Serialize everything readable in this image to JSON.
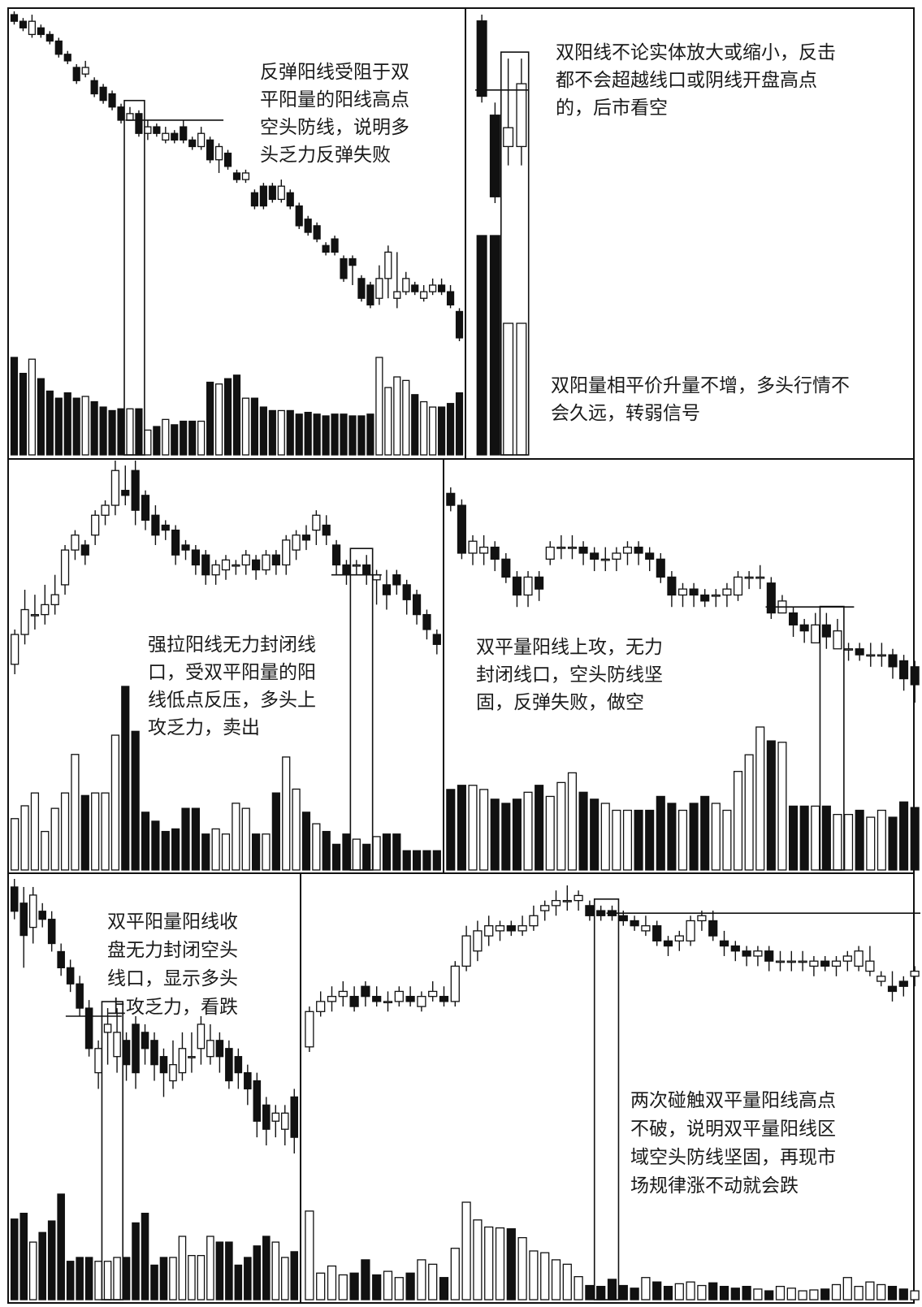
{
  "colors": {
    "bearish": "#111111",
    "bullish": "#ffffff",
    "outline": "#111111",
    "background": "#ffffff"
  },
  "chart_data": [
    {
      "type": "candlestick",
      "panel": "top-left",
      "annotation_lines": [
        "反弹阳线受阻于双",
        "平阳量的阳线高点",
        "空头防线，说明多",
        "头乏力反弹失败"
      ],
      "open": [
        98,
        97,
        95,
        96,
        95,
        94,
        92,
        90,
        89,
        88,
        87,
        86,
        84,
        82,
        83,
        80,
        81,
        79,
        80,
        81,
        79,
        78,
        79,
        76,
        77,
        74,
        73,
        71,
        72,
        72,
        70,
        71,
        69,
        67,
        66,
        63,
        64,
        61,
        61,
        58,
        57,
        55,
        58,
        55,
        56,
        57,
        55,
        56,
        57,
        56,
        53
      ],
      "close": [
        97,
        96,
        97,
        95,
        94,
        92,
        91,
        88,
        90,
        86,
        85,
        84,
        82,
        83,
        80,
        81,
        80,
        80,
        79,
        79,
        78,
        80,
        76,
        78,
        75,
        73,
        74,
        69,
        69,
        70,
        72,
        69,
        66,
        65,
        64,
        62,
        62,
        58,
        60,
        55,
        54,
        58,
        62,
        56,
        58,
        56,
        56,
        57,
        56,
        54,
        49
      ],
      "high": [
        98.5,
        97.5,
        98,
        96.5,
        95.5,
        94.5,
        92.5,
        90.5,
        91,
        88.5,
        87.5,
        86.5,
        84.5,
        84,
        83.5,
        82,
        81.5,
        81,
        80.5,
        82,
        79.5,
        81,
        79.5,
        78.5,
        77.5,
        74.5,
        74.5,
        71.5,
        72.5,
        72.5,
        73,
        71.5,
        69.5,
        67.5,
        66.5,
        63.5,
        64.5,
        61.5,
        61.5,
        58.5,
        57.5,
        60,
        63,
        62,
        59,
        57.5,
        57,
        58,
        58,
        57,
        53.5
      ],
      "low": [
        96.5,
        95.5,
        94.5,
        94.5,
        93.5,
        91.5,
        90.5,
        87.5,
        88.5,
        85.5,
        84.5,
        83.5,
        81.5,
        82,
        79.5,
        79,
        79.5,
        78.5,
        78.5,
        78.5,
        77.5,
        77.5,
        75.5,
        74,
        74.5,
        72.5,
        72.5,
        68.5,
        68.5,
        69.5,
        69.5,
        68.5,
        65.5,
        64.5,
        63.5,
        61.5,
        61.5,
        57.5,
        57,
        54.5,
        53.5,
        54,
        55,
        53.5,
        55.5,
        55.5,
        54.5,
        55.5,
        55.5,
        53.5,
        48.5
      ],
      "volume": [
        55,
        46,
        54,
        43,
        36,
        32,
        35,
        32,
        33,
        30,
        27,
        25,
        26,
        26,
        26,
        14,
        16,
        20,
        17,
        19,
        19,
        19,
        41,
        40,
        43,
        45,
        32,
        32,
        27,
        25,
        25,
        25,
        23,
        24,
        23,
        22,
        23,
        23,
        22,
        22,
        23,
        55,
        38,
        44,
        42,
        34,
        30,
        27,
        27,
        29,
        35
      ],
      "highlight_box": [
        13,
        14
      ],
      "reference_line": {
        "value": 82,
        "from_index": 13,
        "to_index": 23
      }
    },
    {
      "type": "candlestick",
      "panel": "top-right",
      "annotation_top_lines": [
        "双阳线不论实体放大或缩小，反击",
        "都不会超越线口或阴线开盘高点",
        "的，后市看空"
      ],
      "annotation_bottom_lines": [
        "双阳量相平价升量不增，多头行情不",
        "会久远，转弱信号"
      ],
      "open": [
        92,
        77,
        72,
        72
      ],
      "close": [
        80,
        64,
        75,
        82
      ],
      "high": [
        93,
        79,
        86,
        86
      ],
      "low": [
        79,
        63,
        69,
        69
      ],
      "volume": [
        100,
        100,
        60,
        60
      ],
      "highlight_box": [
        2,
        3
      ],
      "reference_line": {
        "value": 81,
        "from_index": 0,
        "to_index": 3
      }
    },
    {
      "type": "candlestick",
      "panel": "middle-left",
      "annotation_lines": [
        "强拉阳线无力封闭线",
        "口，受双平阳量的阳",
        "线低点反压，多头上",
        "攻乏力，卖出"
      ],
      "open": [
        60,
        66,
        70,
        70,
        72,
        76,
        83,
        84,
        86,
        90,
        92,
        95,
        99,
        94,
        90,
        88,
        87,
        84,
        83,
        82,
        78,
        79,
        80,
        80,
        81,
        79,
        82,
        80,
        83,
        86,
        87,
        88,
        84,
        80,
        80,
        80,
        77,
        76,
        78,
        76,
        74,
        70,
        66
      ],
      "close": [
        66,
        71,
        70,
        72,
        74,
        83,
        86,
        82,
        90,
        92,
        99,
        94,
        91,
        89,
        86,
        87,
        82,
        83,
        80,
        78,
        80,
        81,
        80,
        82,
        79,
        82,
        80,
        85,
        86,
        85,
        90,
        86,
        80,
        78,
        80,
        78,
        78,
        74,
        76,
        73,
        70,
        67,
        64
      ],
      "high": [
        67,
        75,
        74,
        76,
        78,
        84,
        87,
        85,
        91,
        93,
        101,
        100,
        101,
        95,
        92,
        89,
        88,
        85,
        84,
        83,
        81,
        82,
        81,
        83,
        82,
        83,
        83,
        86,
        87,
        88,
        91,
        90,
        85,
        81,
        81,
        82,
        79,
        79,
        79,
        77,
        75,
        71,
        67
      ],
      "low": [
        58,
        64,
        67,
        68,
        70,
        74,
        81,
        80,
        84,
        88,
        90,
        92,
        88,
        87,
        84,
        85,
        80,
        81,
        78,
        76,
        76,
        77,
        78,
        78,
        77,
        78,
        78,
        78,
        81,
        83,
        84,
        84,
        78,
        76,
        78,
        76,
        72,
        71,
        74,
        70,
        68,
        65,
        62
      ],
      "volume": [
        40,
        50,
        60,
        30,
        48,
        60,
        90,
        58,
        60,
        60,
        105,
        143,
        108,
        45,
        38,
        30,
        32,
        48,
        48,
        28,
        32,
        28,
        52,
        48,
        28,
        28,
        60,
        88,
        63,
        45,
        36,
        30,
        20,
        28,
        24,
        20,
        26,
        28,
        28,
        15,
        15,
        15,
        15
      ],
      "highlight_box": [
        34,
        35
      ],
      "reference_line": {
        "value": 78,
        "from_index": 32,
        "to_index": 36
      }
    },
    {
      "type": "candlestick",
      "panel": "middle-right",
      "annotation_lines": [
        "双平量阳线上攻，无力",
        "封闭线口，空头防线坚",
        "固，反弹失败，做空"
      ],
      "open": [
        100,
        98,
        90,
        90,
        91,
        89,
        86,
        83,
        86,
        89,
        91,
        91,
        91,
        90,
        89,
        89,
        90,
        91,
        90,
        89,
        86,
        83,
        84,
        83,
        83,
        83,
        83,
        86,
        86,
        85,
        80,
        80,
        78,
        75,
        78,
        74,
        74,
        74,
        73,
        73,
        73,
        72,
        71
      ],
      "close": [
        98,
        90,
        92,
        91,
        89,
        86,
        83,
        86,
        84,
        91,
        91,
        91,
        90,
        89,
        89,
        90,
        91,
        90,
        89,
        86,
        83,
        84,
        83,
        82,
        83,
        84,
        86,
        86,
        86,
        80,
        82,
        78,
        77,
        78,
        76,
        77,
        74,
        73,
        73,
        73,
        71,
        69,
        68
      ],
      "high": [
        101,
        99,
        93,
        93,
        92,
        90,
        87,
        87,
        87,
        92,
        93,
        93,
        92,
        91,
        91,
        91,
        92,
        92,
        91,
        90,
        87,
        85,
        85,
        84,
        84,
        85,
        87,
        87,
        88,
        86,
        83,
        81,
        79,
        80,
        80,
        79,
        75,
        75,
        75,
        75,
        74,
        73,
        72
      ],
      "low": [
        97,
        89,
        88,
        88,
        87,
        85,
        81,
        81,
        82,
        88,
        89,
        89,
        88,
        87,
        87,
        87,
        88,
        88,
        87,
        85,
        81,
        81,
        81,
        81,
        81,
        81,
        82,
        84,
        84,
        79,
        80,
        76,
        75,
        75,
        74,
        74,
        72,
        72,
        71,
        71,
        69,
        67,
        65
      ],
      "volume": [
        58,
        61,
        61,
        58,
        51,
        48,
        51,
        56,
        61,
        53,
        63,
        70,
        56,
        51,
        48,
        43,
        43,
        43,
        43,
        53,
        48,
        43,
        48,
        53,
        48,
        43,
        71,
        83,
        103,
        93,
        92,
        46,
        46,
        46,
        46,
        40,
        40,
        43,
        38,
        43,
        38,
        49,
        45
      ],
      "highlight_box": [
        34,
        35
      ],
      "reference_line": {
        "value": 81,
        "from_index": 29,
        "to_index": 36
      }
    },
    {
      "type": "candlestick",
      "panel": "bottom-left",
      "annotation_lines": [
        "双平阳量阳线收",
        "盘无力封闭空头",
        "线口，显示多头",
        "上攻乏力，看跌"
      ],
      "open": [
        60,
        58,
        55,
        57,
        56,
        52,
        50,
        48,
        45,
        37,
        42,
        39,
        41,
        43,
        42,
        41,
        39,
        36,
        37,
        39,
        40,
        39,
        41,
        40,
        39,
        37,
        36,
        33,
        31,
        30,
        34
      ],
      "close": [
        57,
        54,
        59,
        56,
        53,
        50,
        48,
        45,
        40,
        40,
        43,
        42,
        38,
        37,
        40,
        38,
        37,
        38,
        40,
        39,
        43,
        41,
        39,
        36,
        37,
        35,
        31,
        30,
        32,
        32,
        29
      ],
      "high": [
        61,
        60,
        60,
        58,
        57,
        53,
        51,
        49,
        46,
        41,
        45,
        45,
        42,
        44,
        43,
        42,
        40,
        41,
        42,
        42,
        44,
        43,
        42,
        41,
        40,
        38,
        37,
        34,
        33,
        33,
        35
      ],
      "low": [
        56,
        50,
        53,
        55,
        52,
        49,
        47,
        44,
        39,
        35,
        38,
        37,
        36,
        35,
        38,
        36,
        34,
        35,
        36,
        37,
        38,
        38,
        37,
        35,
        35,
        33,
        29,
        28,
        29,
        28,
        27
      ],
      "volume": [
        42,
        45,
        30,
        35,
        41,
        55,
        20,
        22,
        22,
        20,
        20,
        22,
        22,
        40,
        45,
        18,
        22,
        22,
        33,
        23,
        23,
        33,
        30,
        30,
        18,
        22,
        28,
        33,
        30,
        22,
        25
      ],
      "highlight_box": [
        10,
        11
      ],
      "reference_line": {
        "value": 44,
        "from_index": 6,
        "to_index": 11
      }
    },
    {
      "type": "candlestick",
      "panel": "bottom-right",
      "annotation_lines": [
        "两次碰触双平量阳线高点",
        "不破，说明双平量阳线区",
        "域空头防线坚固，再现市",
        "场规律涨不动就会跌"
      ],
      "open": [
        28,
        35,
        37,
        38,
        38,
        40,
        38,
        37,
        37,
        38,
        36,
        38,
        38,
        37,
        44,
        47,
        50,
        51,
        52,
        51,
        52,
        55,
        56,
        57,
        57,
        56,
        55,
        55,
        54,
        53,
        51,
        52,
        49,
        49,
        49,
        53,
        53,
        49,
        48,
        47,
        46,
        47,
        45,
        45,
        45,
        44,
        45,
        44,
        45,
        44,
        43,
        41,
        40,
        41,
        42
      ],
      "close": [
        35,
        37,
        38,
        39,
        36,
        38,
        37,
        37,
        39,
        37,
        38,
        39,
        37,
        44,
        50,
        51,
        52,
        52,
        51,
        52,
        54,
        56,
        57,
        57,
        58,
        54,
        54,
        54,
        53,
        52,
        52,
        49,
        48,
        50,
        53,
        54,
        50,
        48,
        47,
        46,
        47,
        45,
        45,
        45,
        45,
        45,
        44,
        45,
        46,
        47,
        45,
        42,
        39,
        40,
        43
      ],
      "high": [
        36,
        39,
        40,
        41,
        40,
        41,
        40,
        39,
        40,
        40,
        39,
        41,
        40,
        45,
        52,
        53,
        54,
        53,
        53,
        54,
        56,
        57,
        59,
        60,
        59,
        57,
        56,
        56,
        55,
        54,
        54,
        53,
        50,
        51,
        54,
        55,
        55,
        51,
        49,
        48,
        48,
        48,
        47,
        47,
        47,
        46,
        46,
        46,
        47,
        48,
        48,
        43,
        43,
        42,
        44
      ],
      "low": [
        27,
        34,
        35,
        36,
        35,
        36,
        36,
        35,
        36,
        36,
        35,
        37,
        36,
        36,
        43,
        45,
        48,
        49,
        50,
        50,
        51,
        53,
        54,
        55,
        55,
        53,
        53,
        53,
        52,
        51,
        50,
        48,
        46,
        47,
        48,
        51,
        49,
        46,
        45,
        44,
        44,
        43,
        43,
        43,
        43,
        42,
        43,
        42,
        43,
        43,
        42,
        40,
        37,
        38,
        40
      ],
      "volume": [
        100,
        30,
        38,
        28,
        30,
        45,
        28,
        32,
        25,
        30,
        45,
        40,
        25,
        58,
        110,
        90,
        82,
        81,
        80,
        70,
        55,
        53,
        45,
        40,
        26,
        16,
        15,
        23,
        16,
        13,
        25,
        20,
        15,
        18,
        20,
        16,
        19,
        15,
        13,
        15,
        12,
        10,
        15,
        13,
        10,
        11,
        12,
        17,
        25,
        15,
        20,
        17,
        15,
        12,
        10
      ],
      "highlight_box": [
        26,
        27
      ],
      "reference_line": {
        "value": 54.5,
        "from_index": 27,
        "to_index": 54
      }
    }
  ]
}
